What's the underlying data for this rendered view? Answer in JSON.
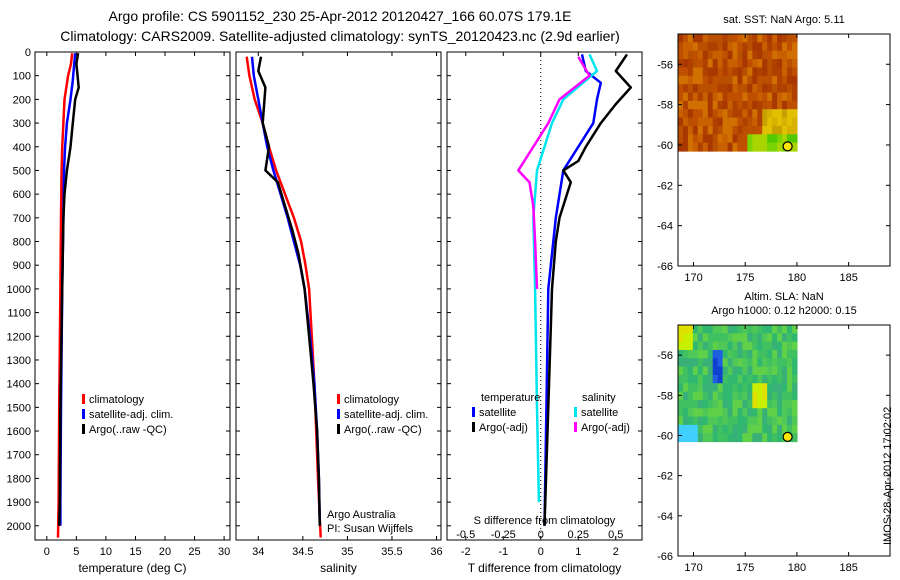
{
  "header": {
    "line1": "Argo profile: CS 5901152_230 25-Apr-2012 20120427_166 60.07S 179.1E",
    "line2": "Climatology: CARS2009. Satellite-adjusted climatology: synTS_20120423.nc (2.9d earlier)"
  },
  "footer": {
    "timestamp": "IMOS 28-Apr-2012 17:02:02"
  },
  "colors": {
    "climatology": "#ff0000",
    "satellite": "#0000ff",
    "argo": "#000000",
    "sat_salinity": "#00e5ee",
    "argo_salinity": "#ff00ff"
  },
  "chart_data": [
    {
      "id": "temperature",
      "type": "line",
      "xlabel": "temperature (deg C)",
      "ylabel": "",
      "xlim": [
        -2,
        31
      ],
      "ylim": [
        2060,
        0
      ],
      "xticks": [
        "0",
        "5",
        "10",
        "15",
        "20",
        "25",
        "30"
      ],
      "xtick_values": [
        0,
        5,
        10,
        15,
        20,
        25,
        30
      ],
      "yticks": [
        "0",
        "100",
        "200",
        "300",
        "400",
        "500",
        "600",
        "700",
        "800",
        "900",
        "1000",
        "1100",
        "1200",
        "1300",
        "1400",
        "1500",
        "1600",
        "1700",
        "1800",
        "1900",
        "2000"
      ],
      "ytick_values": [
        0,
        100,
        200,
        300,
        400,
        500,
        600,
        700,
        800,
        900,
        1000,
        1100,
        1200,
        1300,
        1400,
        1500,
        1600,
        1700,
        1800,
        1900,
        2000
      ],
      "legend": [
        "climatology",
        "satellite-adj. clim.",
        "Argo(..raw -QC)"
      ],
      "series": [
        {
          "name": "climatology",
          "color": "#ff0000",
          "points": [
            [
              4.3,
              5
            ],
            [
              4.1,
              50
            ],
            [
              3.6,
              100
            ],
            [
              3.0,
              200
            ],
            [
              2.8,
              300
            ],
            [
              2.6,
              400
            ],
            [
              2.5,
              500
            ],
            [
              2.4,
              700
            ],
            [
              2.3,
              1000
            ],
            [
              2.1,
              1500
            ],
            [
              2.0,
              1900
            ],
            [
              1.9,
              2050
            ]
          ]
        },
        {
          "name": "satellite-adj. clim.",
          "color": "#0000ff",
          "points": [
            [
              4.8,
              5
            ],
            [
              4.6,
              60
            ],
            [
              4.4,
              120
            ],
            [
              4.0,
              200
            ],
            [
              3.4,
              300
            ],
            [
              3.1,
              400
            ],
            [
              2.9,
              500
            ],
            [
              2.8,
              700
            ],
            [
              2.6,
              1000
            ],
            [
              2.4,
              1500
            ],
            [
              2.3,
              1900
            ],
            [
              2.3,
              2000
            ]
          ]
        },
        {
          "name": "Argo(..raw -QC)",
          "color": "#000000",
          "points": [
            [
              5.3,
              5
            ],
            [
              5.0,
              50
            ],
            [
              5.4,
              150
            ],
            [
              4.8,
              200
            ],
            [
              4.4,
              300
            ],
            [
              4.0,
              400
            ],
            [
              3.4,
              500
            ],
            [
              3.0,
              600
            ],
            [
              2.8,
              700
            ],
            [
              2.6,
              1000
            ],
            [
              2.3,
              1500
            ],
            [
              2.2,
              1900
            ],
            [
              2.1,
              2000
            ]
          ]
        }
      ]
    },
    {
      "id": "salinity",
      "type": "line",
      "xlabel": "salinity",
      "xlim": [
        33.75,
        36.05
      ],
      "ylim": [
        2060,
        0
      ],
      "xticks": [
        "34",
        "34.5",
        "35",
        "35.5",
        "36"
      ],
      "xtick_values": [
        34,
        34.5,
        35,
        35.5,
        36
      ],
      "legend": [
        "climatology",
        "satellite-adj. clim.",
        "Argo(..raw -QC)"
      ],
      "annotation": [
        "Argo Australia",
        "PI: Susan Wijffels"
      ],
      "series": [
        {
          "name": "climatology",
          "color": "#ff0000",
          "points": [
            [
              33.87,
              20
            ],
            [
              33.9,
              100
            ],
            [
              33.96,
              200
            ],
            [
              34.05,
              300
            ],
            [
              34.12,
              400
            ],
            [
              34.2,
              500
            ],
            [
              34.3,
              600
            ],
            [
              34.4,
              700
            ],
            [
              34.48,
              800
            ],
            [
              34.53,
              900
            ],
            [
              34.57,
              1000
            ],
            [
              34.6,
              1200
            ],
            [
              34.63,
              1400
            ],
            [
              34.65,
              1600
            ],
            [
              34.67,
              1800
            ],
            [
              34.7,
              2050
            ]
          ]
        },
        {
          "name": "satellite-adj. clim.",
          "color": "#0000ff",
          "points": [
            [
              33.93,
              20
            ],
            [
              33.95,
              100
            ],
            [
              34.0,
              200
            ],
            [
              34.05,
              300
            ],
            [
              34.1,
              400
            ],
            [
              34.17,
              500
            ],
            [
              34.25,
              600
            ],
            [
              34.33,
              700
            ],
            [
              34.4,
              800
            ],
            [
              34.47,
              900
            ],
            [
              34.52,
              1000
            ],
            [
              34.58,
              1200
            ],
            [
              34.63,
              1400
            ],
            [
              34.66,
              1600
            ],
            [
              34.68,
              1800
            ],
            [
              34.69,
              2000
            ]
          ]
        },
        {
          "name": "Argo(..raw -QC)",
          "color": "#000000",
          "points": [
            [
              34.03,
              20
            ],
            [
              34.0,
              80
            ],
            [
              34.08,
              150
            ],
            [
              34.05,
              300
            ],
            [
              34.12,
              400
            ],
            [
              34.08,
              500
            ],
            [
              34.22,
              550
            ],
            [
              34.3,
              650
            ],
            [
              34.38,
              750
            ],
            [
              34.45,
              850
            ],
            [
              34.52,
              1000
            ],
            [
              34.57,
              1200
            ],
            [
              34.62,
              1400
            ],
            [
              34.66,
              1600
            ],
            [
              34.68,
              1800
            ],
            [
              34.69,
              2000
            ]
          ]
        }
      ]
    },
    {
      "id": "difference",
      "type": "line",
      "xlabel": "T difference from climatology",
      "xlabel_top": "S difference from climatology",
      "xlim": [
        -2.5,
        2.7
      ],
      "ylim": [
        2060,
        0
      ],
      "xticks": [
        "-2",
        "-1",
        "0",
        "1",
        "2"
      ],
      "xtick_values": [
        -2,
        -1,
        0,
        1,
        2
      ],
      "sticks": [
        "-0.5",
        "-0.25",
        "0",
        "0.25",
        "0.5"
      ],
      "stick_values": [
        -0.5,
        -0.25,
        0,
        0.25,
        0.5
      ],
      "legend": {
        "temperature": [
          "satellite",
          "Argo(-adj)"
        ],
        "salinity": [
          "satellite",
          "Argo(-adj)"
        ]
      },
      "legend_headers": [
        "temperature",
        "salinity"
      ],
      "series": [
        {
          "name": "satellite",
          "color": "#0000ff",
          "points": [
            [
              1.1,
              10
            ],
            [
              1.2,
              80
            ],
            [
              1.6,
              130
            ],
            [
              1.5,
              200
            ],
            [
              1.4,
              300
            ],
            [
              1.0,
              400
            ],
            [
              0.6,
              500
            ],
            [
              0.4,
              700
            ],
            [
              0.2,
              1000
            ],
            [
              0.15,
              1500
            ],
            [
              0.1,
              2000
            ]
          ]
        },
        {
          "name": "Argo(-adj)",
          "color": "#000000",
          "points": [
            [
              2.3,
              10
            ],
            [
              2.0,
              80
            ],
            [
              2.4,
              150
            ],
            [
              2.0,
              220
            ],
            [
              1.6,
              300
            ],
            [
              1.2,
              400
            ],
            [
              1.0,
              460
            ],
            [
              0.6,
              500
            ],
            [
              0.8,
              550
            ],
            [
              0.7,
              600
            ],
            [
              0.5,
              700
            ],
            [
              0.4,
              800
            ],
            [
              0.3,
              1000
            ],
            [
              0.2,
              1500
            ],
            [
              0.1,
              2000
            ]
          ]
        },
        {
          "name": "satellite",
          "color": "#00e5ee",
          "points": [
            [
              1.3,
              10
            ],
            [
              1.5,
              80
            ],
            [
              1.2,
              120
            ],
            [
              0.6,
              200
            ],
            [
              0.3,
              300
            ],
            [
              0.1,
              400
            ],
            [
              -0.1,
              500
            ],
            [
              -0.2,
              700
            ],
            [
              -0.15,
              1000
            ],
            [
              -0.1,
              1500
            ],
            [
              -0.05,
              1900
            ]
          ]
        },
        {
          "name": "Argo(-adj)",
          "color": "#ff00ff",
          "points": [
            [
              1.0,
              20
            ],
            [
              1.3,
              100
            ],
            [
              0.5,
              200
            ],
            [
              0.2,
              300
            ],
            [
              -0.2,
              400
            ],
            [
              -0.6,
              500
            ],
            [
              -0.3,
              550
            ],
            [
              -0.2,
              650
            ],
            [
              -0.15,
              800
            ],
            [
              -0.1,
              1000
            ]
          ]
        }
      ]
    },
    {
      "id": "sst_map",
      "type": "heatmap",
      "title": "sat. SST: NaN Argo: 5.11",
      "xlim": [
        168.5,
        189
      ],
      "ylim": [
        -66,
        -54.5
      ],
      "xticks": [
        "170",
        "175",
        "180",
        "185"
      ],
      "xtick_values": [
        170,
        175,
        180,
        185
      ],
      "yticks": [
        "-56",
        "-58",
        "-60",
        "-62",
        "-64",
        "-66"
      ],
      "ytick_values": [
        -56,
        -58,
        -60,
        -62,
        -64,
        -66
      ],
      "marker": {
        "lon": 179.1,
        "lat": -60.07
      }
    },
    {
      "id": "sla_map",
      "type": "heatmap",
      "title": "Altim. SLA: NaN",
      "subtitle": "Argo h1000: 0.12 h2000: 0.15",
      "xlim": [
        168.5,
        189
      ],
      "ylim": [
        -66,
        -54.5
      ],
      "xticks": [
        "170",
        "175",
        "180",
        "185"
      ],
      "xtick_values": [
        170,
        175,
        180,
        185
      ],
      "yticks": [
        "-56",
        "-58",
        "-60",
        "-62",
        "-64",
        "-66"
      ],
      "ytick_values": [
        -56,
        -58,
        -60,
        -62,
        -64,
        -66
      ],
      "marker": {
        "lon": 179.1,
        "lat": -60.07
      }
    }
  ]
}
